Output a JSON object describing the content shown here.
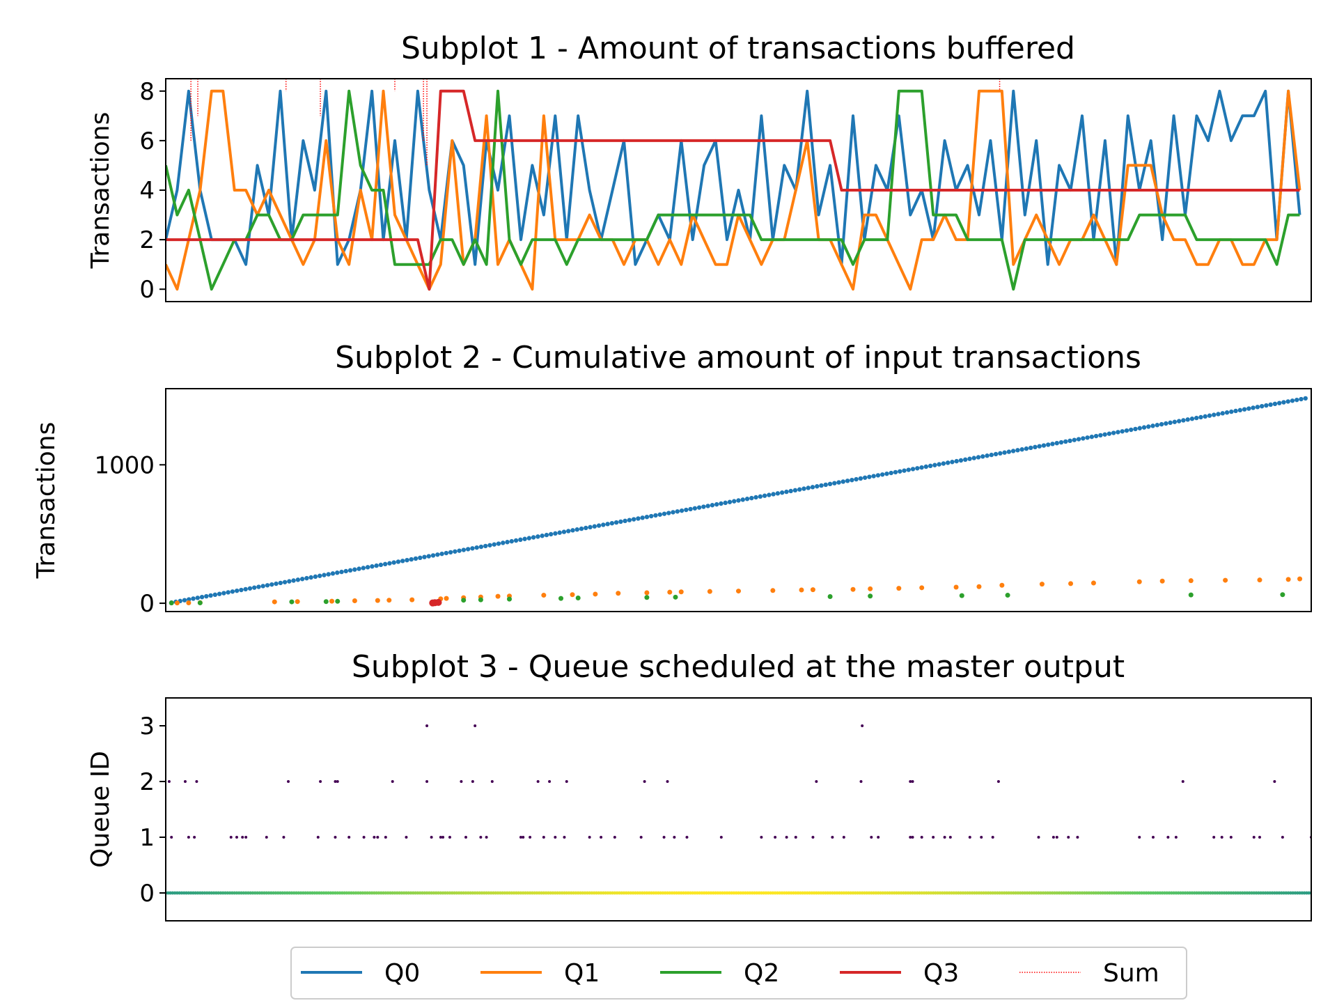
{
  "chart_data": [
    {
      "type": "line",
      "title": "Subplot 1 - Amount of transactions buffered",
      "ylabel": "Transactions",
      "xlabel": "",
      "ylim": [
        -0.5,
        8.5
      ],
      "yticks": [
        0,
        2,
        4,
        6,
        8
      ],
      "xlim": [
        0,
        1000
      ],
      "x_tick_labels_visible": false,
      "grid": false,
      "series": [
        {
          "name": "Q0",
          "color": "#1f77b4",
          "step": 10,
          "values": [
            2,
            4,
            8,
            4,
            2,
            2,
            2,
            1,
            5,
            3,
            8,
            2,
            6,
            4,
            8,
            1,
            2,
            4,
            8,
            2,
            6,
            2,
            8,
            4,
            2,
            6,
            5,
            1,
            6,
            4,
            7,
            2,
            5,
            3,
            7,
            2,
            7,
            4,
            2,
            4,
            6,
            1,
            2,
            3,
            2,
            6,
            2,
            5,
            6,
            2,
            4,
            2,
            7,
            2,
            5,
            4,
            8,
            3,
            5,
            1,
            7,
            2,
            5,
            4,
            7,
            3,
            4,
            2,
            6,
            4,
            5,
            3,
            6,
            2,
            8,
            3,
            6,
            1,
            5,
            4,
            7,
            2,
            6,
            1,
            7,
            4,
            6,
            2,
            7,
            3,
            7,
            6,
            8,
            6,
            7,
            7,
            8,
            2,
            8,
            3
          ]
        },
        {
          "name": "Q1",
          "color": "#ff7f0e",
          "step": 10,
          "values": [
            1,
            0,
            2,
            4,
            8,
            8,
            4,
            4,
            3,
            4,
            3,
            2,
            1,
            2,
            6,
            2,
            1,
            4,
            2,
            8,
            3,
            2,
            1,
            0,
            1,
            6,
            1,
            2,
            7,
            1,
            2,
            1,
            0,
            7,
            2,
            2,
            2,
            3,
            2,
            2,
            1,
            2,
            2,
            1,
            2,
            1,
            3,
            2,
            1,
            1,
            3,
            2,
            1,
            2,
            2,
            4,
            6,
            2,
            2,
            1,
            0,
            3,
            3,
            2,
            1,
            0,
            2,
            2,
            3,
            2,
            2,
            8,
            8,
            8,
            1,
            2,
            3,
            2,
            1,
            2,
            2,
            3,
            2,
            1,
            5,
            5,
            5,
            3,
            2,
            2,
            1,
            1,
            2,
            2,
            1,
            1,
            2,
            2,
            8,
            4
          ]
        },
        {
          "name": "Q2",
          "color": "#2ca02c",
          "step": 10,
          "values": [
            5,
            3,
            4,
            2,
            0,
            1,
            2,
            2,
            3,
            3,
            2,
            2,
            3,
            3,
            3,
            3,
            8,
            5,
            4,
            4,
            1,
            1,
            1,
            1,
            2,
            2,
            1,
            2,
            1,
            8,
            2,
            1,
            2,
            2,
            2,
            1,
            2,
            2,
            2,
            2,
            2,
            2,
            2,
            3,
            3,
            3,
            3,
            3,
            3,
            3,
            3,
            3,
            2,
            2,
            2,
            2,
            2,
            2,
            2,
            2,
            1,
            2,
            2,
            2,
            8,
            8,
            8,
            3,
            3,
            3,
            2,
            2,
            2,
            2,
            0,
            2,
            2,
            2,
            2,
            2,
            2,
            2,
            2,
            2,
            2,
            3,
            3,
            3,
            3,
            3,
            2,
            2,
            2,
            2,
            2,
            2,
            2,
            1,
            3,
            3
          ]
        },
        {
          "name": "Q3",
          "color": "#d62728",
          "step": 10,
          "values": [
            2,
            2,
            2,
            2,
            2,
            2,
            2,
            2,
            2,
            2,
            2,
            2,
            2,
            2,
            2,
            2,
            2,
            2,
            2,
            2,
            2,
            2,
            2,
            0,
            8,
            8,
            8,
            6,
            6,
            6,
            6,
            6,
            6,
            6,
            6,
            6,
            6,
            6,
            6,
            6,
            6,
            6,
            6,
            6,
            6,
            6,
            6,
            6,
            6,
            6,
            6,
            6,
            6,
            6,
            6,
            6,
            6,
            6,
            6,
            4,
            4,
            4,
            4,
            4,
            4,
            4,
            4,
            4,
            4,
            4,
            4,
            4,
            4,
            4,
            4,
            4,
            4,
            4,
            4,
            4,
            4,
            4,
            4,
            4,
            4,
            4,
            4,
            4,
            4,
            4,
            4,
            4,
            4,
            4,
            4,
            4,
            4,
            4,
            4,
            4
          ]
        },
        {
          "name": "Sum",
          "color": "#ff0000",
          "style": "dotted",
          "points": [
            [
              22,
              6
            ],
            [
              28,
              7
            ],
            [
              105,
              8
            ],
            [
              135,
              7
            ],
            [
              200,
              8
            ],
            [
              225,
              6
            ],
            [
              228,
              5
            ],
            [
              728,
              8
            ]
          ]
        }
      ]
    },
    {
      "type": "scatter",
      "title": "Subplot 2 - Cumulative amount of input transactions",
      "ylabel": "Transactions",
      "xlabel": "",
      "ylim": [
        -60,
        1550
      ],
      "yticks": [
        0,
        1000
      ],
      "xlim": [
        0,
        1000
      ],
      "x_tick_labels_visible": false,
      "grid": false,
      "series": [
        {
          "name": "Q0",
          "color": "#1f77b4",
          "line": [
            [
              5,
              5
            ],
            [
              995,
              1480
            ]
          ]
        },
        {
          "name": "Q1",
          "color": "#ff7f0e",
          "points": [
            [
              10,
              2
            ],
            [
              20,
              3
            ],
            [
              30,
              4
            ],
            [
              95,
              10
            ],
            [
              115,
              12
            ],
            [
              145,
              15
            ],
            [
              165,
              18
            ],
            [
              185,
              20
            ],
            [
              195,
              22
            ],
            [
              215,
              25
            ],
            [
              240,
              32
            ],
            [
              245,
              35
            ],
            [
              260,
              40
            ],
            [
              275,
              45
            ],
            [
              290,
              50
            ],
            [
              300,
              52
            ],
            [
              330,
              58
            ],
            [
              355,
              62
            ],
            [
              375,
              66
            ],
            [
              395,
              72
            ],
            [
              420,
              76
            ],
            [
              440,
              80
            ],
            [
              450,
              82
            ],
            [
              475,
              85
            ],
            [
              500,
              88
            ],
            [
              530,
              92
            ],
            [
              555,
              96
            ],
            [
              565,
              98
            ],
            [
              600,
              100
            ],
            [
              615,
              104
            ],
            [
              640,
              108
            ],
            [
              660,
              112
            ],
            [
              690,
              116
            ],
            [
              710,
              120
            ],
            [
              730,
              130
            ],
            [
              765,
              138
            ],
            [
              790,
              142
            ],
            [
              810,
              146
            ],
            [
              850,
              155
            ],
            [
              870,
              160
            ],
            [
              895,
              163
            ],
            [
              925,
              166
            ],
            [
              955,
              168
            ],
            [
              980,
              172
            ],
            [
              990,
              176
            ]
          ]
        },
        {
          "name": "Q2",
          "color": "#2ca02c",
          "points": [
            [
              5,
              2
            ],
            [
              30,
              3
            ],
            [
              110,
              10
            ],
            [
              140,
              12
            ],
            [
              150,
              14
            ],
            [
              260,
              22
            ],
            [
              275,
              25
            ],
            [
              300,
              30
            ],
            [
              345,
              35
            ],
            [
              360,
              38
            ],
            [
              420,
              42
            ],
            [
              445,
              44
            ],
            [
              580,
              48
            ],
            [
              615,
              52
            ],
            [
              695,
              55
            ],
            [
              735,
              58
            ],
            [
              895,
              60
            ],
            [
              975,
              62
            ]
          ]
        },
        {
          "name": "Q3",
          "color": "#d62728",
          "points": [
            [
              233,
              2
            ],
            [
              235,
              4
            ],
            [
              238,
              6
            ]
          ]
        }
      ]
    },
    {
      "type": "scatter",
      "title": "Subplot 3 - Queue scheduled at the master output",
      "ylabel": "Queue ID",
      "xlabel": "",
      "ylim": [
        -0.5,
        3.5
      ],
      "yticks": [
        0,
        1,
        2,
        3
      ],
      "xlim": [
        0,
        1000
      ],
      "x_tick_labels_visible": false,
      "grid": false,
      "colormap": "viridis",
      "series": [
        {
          "name": "Q0",
          "queue": 0,
          "continuous": true,
          "x_range": [
            0,
            1000
          ]
        },
        {
          "name": "Q1",
          "queue": 1,
          "x": [
            5,
            20,
            25,
            57,
            62,
            67,
            70,
            88,
            103,
            133,
            148,
            160,
            173,
            182,
            185,
            192,
            210,
            232,
            240,
            242,
            248,
            262,
            275,
            280,
            310,
            312,
            318,
            330,
            340,
            348,
            370,
            380,
            392,
            415,
            435,
            444,
            455,
            485,
            520,
            532,
            542,
            550,
            565,
            582,
            592,
            616,
            622,
            650,
            652,
            660,
            670,
            680,
            685,
            702,
            712,
            722,
            762,
            775,
            778,
            788,
            796,
            850,
            862,
            875,
            882,
            915,
            922,
            930,
            950,
            955,
            975,
            1000
          ]
        },
        {
          "name": "Q2",
          "queue": 2,
          "x": [
            3,
            17,
            27,
            107,
            135,
            148,
            150,
            198,
            228,
            258,
            268,
            285,
            325,
            335,
            350,
            418,
            438,
            568,
            607,
            650,
            652,
            727,
            888,
            968
          ]
        },
        {
          "name": "Q3",
          "queue": 3,
          "x": [
            228,
            270,
            608
          ]
        }
      ]
    }
  ],
  "legend": {
    "placement": "bottom-center",
    "entries": [
      {
        "name": "Q0",
        "color": "#1f77b4",
        "style": "solid"
      },
      {
        "name": "Q1",
        "color": "#ff7f0e",
        "style": "solid"
      },
      {
        "name": "Q2",
        "color": "#2ca02c",
        "style": "solid"
      },
      {
        "name": "Q3",
        "color": "#d62728",
        "style": "solid"
      },
      {
        "name": "Sum",
        "color": "#ff0000",
        "style": "dotted"
      }
    ]
  }
}
